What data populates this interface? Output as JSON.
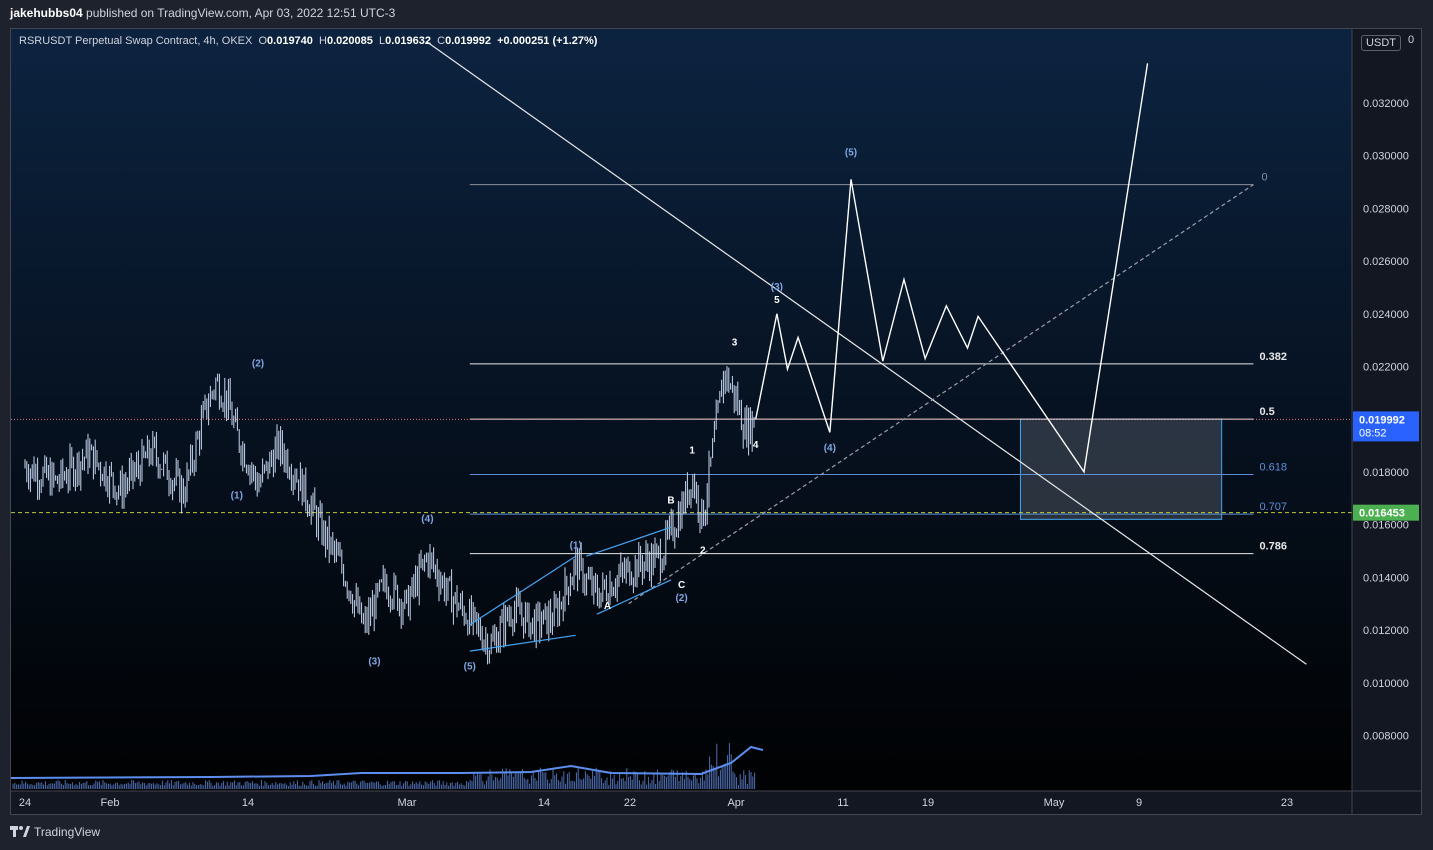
{
  "header": {
    "publisher": "jakehubbs04",
    "published_text": "published on TradingView.com, Apr 03, 2022 12:51 UTC-3"
  },
  "legend": {
    "symbol": "RSRUSDT Perpetual Swap Contract, 4h, OKEX",
    "open_label": "O",
    "open": "0.019740",
    "high_label": "H",
    "high": "0.020085",
    "low_label": "L",
    "low": "0.019632",
    "close_label": "C",
    "close": "0.019992",
    "change": "+0.000251 (+1.27%)"
  },
  "currency_button": "USDT",
  "footer": {
    "brand": "TradingView"
  },
  "colors": {
    "background_top": "#0c2340",
    "background_bottom": "#000000",
    "candle": "#c7d7f0",
    "wave_blue": "#7ea6e0",
    "green_tag": "#4caf50",
    "blue_tag": "#2962ff",
    "box_fill": "#4a525e",
    "box_border": "#42a5f5"
  },
  "chart_data": {
    "type": "line",
    "title": "",
    "x_ticks": [
      "24",
      "Feb",
      "14",
      "Mar",
      "14",
      "22",
      "Apr",
      "11",
      "19",
      "May",
      "9",
      "23"
    ],
    "y_ticks": [
      "0.032000",
      "0.030000",
      "0.028000",
      "0.026000",
      "0.024000",
      "0.022000",
      "0.018000",
      "0.016000",
      "0.014000",
      "0.012000",
      "0.010000",
      "0.008000"
    ],
    "y_top_partial_label": "0",
    "ylim": [
      0.0065,
      0.0345
    ],
    "price_tag": {
      "value": "0.019992",
      "countdown": "08:52"
    },
    "level_tag": {
      "value": "0.016453"
    },
    "fibonacci": {
      "levels": [
        {
          "label": "0",
          "value": 0.0289
        },
        {
          "label": "0.382",
          "value": 0.0221
        },
        {
          "label": "0.5",
          "value": 0.02
        },
        {
          "label": "0.618",
          "value": 0.0179
        },
        {
          "label": "0.707",
          "value": 0.0164
        },
        {
          "label": "0.786",
          "value": 0.0149
        }
      ]
    },
    "price_series": [
      {
        "x": "Jan 24",
        "y": 0.0182
      },
      {
        "x": "Jan 27",
        "y": 0.0176
      },
      {
        "x": "Jan 30",
        "y": 0.0187
      },
      {
        "x": "Feb 02",
        "y": 0.0173
      },
      {
        "x": "Feb 05",
        "y": 0.0188
      },
      {
        "x": "Feb 08",
        "y": 0.0172
      },
      {
        "x": "Feb 10",
        "y": 0.0203
      },
      {
        "x": "Feb 11",
        "y": 0.0214
      },
      {
        "x": "Feb 12",
        "y": 0.0208
      },
      {
        "x": "Feb 13",
        "y": 0.0194
      },
      {
        "x": "Feb 15",
        "y": 0.0175
      },
      {
        "x": "Feb 17",
        "y": 0.019
      },
      {
        "x": "Feb 19",
        "y": 0.0176
      },
      {
        "x": "Feb 21",
        "y": 0.0158
      },
      {
        "x": "Feb 23",
        "y": 0.0143
      },
      {
        "x": "Feb 25",
        "y": 0.0121
      },
      {
        "x": "Feb 27",
        "y": 0.0138
      },
      {
        "x": "Mar 01",
        "y": 0.0129
      },
      {
        "x": "Mar 03",
        "y": 0.0148
      },
      {
        "x": "Mar 05",
        "y": 0.0134
      },
      {
        "x": "Mar 07",
        "y": 0.0124
      },
      {
        "x": "Mar 09",
        "y": 0.0114
      },
      {
        "x": "Mar 11",
        "y": 0.0128
      },
      {
        "x": "Mar 13",
        "y": 0.0122
      },
      {
        "x": "Mar 15",
        "y": 0.0125
      },
      {
        "x": "Mar 17",
        "y": 0.0145
      },
      {
        "x": "Mar 19",
        "y": 0.0133
      },
      {
        "x": "Mar 21",
        "y": 0.014
      },
      {
        "x": "Mar 23",
        "y": 0.0145
      },
      {
        "x": "Mar 25",
        "y": 0.0148
      },
      {
        "x": "Mar 27",
        "y": 0.0166
      },
      {
        "x": "Mar 28",
        "y": 0.0178
      },
      {
        "x": "Mar 29",
        "y": 0.0162
      },
      {
        "x": "Mar 30",
        "y": 0.019
      },
      {
        "x": "Mar 31",
        "y": 0.0218
      },
      {
        "x": "Apr 01",
        "y": 0.0209
      },
      {
        "x": "Apr 02",
        "y": 0.0196
      },
      {
        "x": "Apr 03",
        "y": 0.02
      }
    ],
    "projection_path": [
      {
        "x": "Apr 03",
        "y": 0.02
      },
      {
        "x": "Apr 05",
        "y": 0.024
      },
      {
        "x": "Apr 06",
        "y": 0.0219
      },
      {
        "x": "Apr 07",
        "y": 0.0231
      },
      {
        "x": "Apr 10",
        "y": 0.0195
      },
      {
        "x": "Apr 12",
        "y": 0.0291
      },
      {
        "x": "Apr 15",
        "y": 0.0222
      },
      {
        "x": "Apr 17",
        "y": 0.0253
      },
      {
        "x": "Apr 19",
        "y": 0.0223
      },
      {
        "x": "Apr 21",
        "y": 0.0243
      },
      {
        "x": "Apr 23",
        "y": 0.0227
      },
      {
        "x": "Apr 24",
        "y": 0.0239
      },
      {
        "x": "May 04",
        "y": 0.018
      },
      {
        "x": "May 10",
        "y": 0.0335
      }
    ],
    "support_zone": {
      "from": "Apr 28",
      "to": "May 17",
      "top": 0.02,
      "bottom": 0.0162
    },
    "wave_labels": [
      {
        "text": "(2)",
        "x": "Feb 15",
        "y": 0.022,
        "color": "blue"
      },
      {
        "text": "(1)",
        "x": "Feb 13",
        "y": 0.017,
        "color": "blue"
      },
      {
        "text": "(3)",
        "x": "Feb 26",
        "y": 0.0107,
        "color": "blue"
      },
      {
        "text": "(4)",
        "x": "Mar 03",
        "y": 0.0161,
        "color": "blue"
      },
      {
        "text": "(5)",
        "x": "Mar 07",
        "y": 0.0105,
        "color": "blue"
      },
      {
        "text": "(1)",
        "x": "Mar 17",
        "y": 0.0151,
        "color": "blue"
      },
      {
        "text": "A",
        "x": "Mar 20",
        "y": 0.0128,
        "color": "white"
      },
      {
        "text": "B",
        "x": "Mar 26",
        "y": 0.0168,
        "color": "white"
      },
      {
        "text": "C",
        "x": "Mar 27",
        "y": 0.0136,
        "color": "white"
      },
      {
        "text": "(2)",
        "x": "Mar 27",
        "y": 0.0131,
        "color": "blue"
      },
      {
        "text": "1",
        "x": "Mar 28",
        "y": 0.0187,
        "color": "white"
      },
      {
        "text": "2",
        "x": "Mar 29",
        "y": 0.0149,
        "color": "white"
      },
      {
        "text": "3",
        "x": "Apr 01",
        "y": 0.0228,
        "color": "white"
      },
      {
        "text": "4",
        "x": "Apr 03",
        "y": 0.0189,
        "color": "white"
      },
      {
        "text": "5",
        "x": "Apr 05",
        "y": 0.0244,
        "color": "white"
      },
      {
        "text": "(3)",
        "x": "Apr 05",
        "y": 0.0249,
        "color": "blue"
      },
      {
        "text": "(4)",
        "x": "Apr 10",
        "y": 0.0188,
        "color": "blue"
      },
      {
        "text": "(5)",
        "x": "Apr 12",
        "y": 0.03,
        "color": "blue"
      }
    ],
    "trendlines": [
      {
        "name": "descending resistance",
        "from": {
          "x": "Mar 03",
          "y": 0.0343
        },
        "to": {
          "x": "May 25",
          "y": 0.0107
        },
        "style": "solid"
      },
      {
        "name": "rising support",
        "from": {
          "x": "Mar 22",
          "y": 0.013
        },
        "to": {
          "x": "May 20",
          "y": 0.0289
        },
        "style": "dashed"
      }
    ],
    "wedge_lines": [
      {
        "from": {
          "x": "Mar 07",
          "y": 0.0122
        },
        "to": {
          "x": "Mar 17",
          "y": 0.0148
        }
      },
      {
        "from": {
          "x": "Mar 07",
          "y": 0.0112
        },
        "to": {
          "x": "Mar 17",
          "y": 0.0118
        }
      },
      {
        "from": {
          "x": "Mar 18",
          "y": 0.0148
        },
        "to": {
          "x": "Mar 26",
          "y": 0.0159
        }
      },
      {
        "from": {
          "x": "Mar 19",
          "y": 0.0126
        },
        "to": {
          "x": "Mar 26",
          "y": 0.0139
        }
      }
    ],
    "grid": false
  }
}
